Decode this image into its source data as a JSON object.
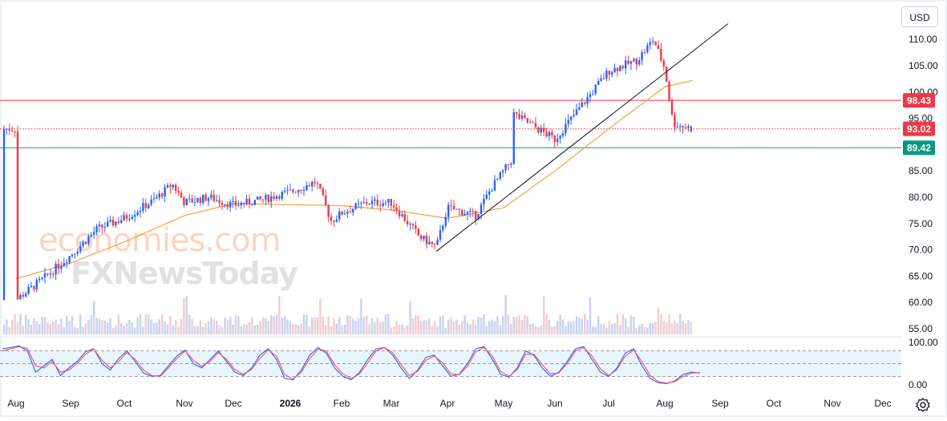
{
  "currency_label": "USD",
  "watermark": {
    "line1": "economies.com",
    "line2": "FXNewsToday"
  },
  "chart_data": [
    {
      "type": "candlestick",
      "title": "",
      "currency": "USD",
      "y_axis": {
        "min": 55,
        "max": 110,
        "ticks": [
          "110.00",
          "105.00",
          "100.00",
          "95.00",
          "90.00",
          "85.00",
          "80.00",
          "75.00",
          "70.00",
          "65.00",
          "60.00",
          "55.00"
        ]
      },
      "x_axis": {
        "labels": [
          "Aug",
          "Sep",
          "Oct",
          "Nov",
          "Dec",
          "2026",
          "Feb",
          "Mar",
          "Apr",
          "May",
          "Jun",
          "Jul",
          "Aug",
          "Sep",
          "Oct",
          "Nov",
          "Dec"
        ],
        "bold_label": "2026"
      },
      "horizontal_lines": [
        {
          "label": "98.43",
          "value": 98.43,
          "color": "#f23645",
          "style": "solid"
        },
        {
          "label": "93.02",
          "value": 93.02,
          "color": "#f23645",
          "style": "dotted",
          "note": "last price"
        },
        {
          "label": "89.42",
          "value": 89.42,
          "color": "#089981",
          "style": "solid"
        }
      ],
      "trendline": {
        "from": {
          "date": "late Mar",
          "value": 69.7
        },
        "to": {
          "date": "early Sep",
          "value": 113.0
        }
      },
      "moving_average": {
        "color": "#f7a03c",
        "points": [
          {
            "date": "Aug",
            "value": 64.5
          },
          {
            "date": "Sep",
            "value": 67.5
          },
          {
            "date": "Oct",
            "value": 71.5
          },
          {
            "date": "Nov",
            "value": 76.5
          },
          {
            "date": "Dec",
            "value": 78.8
          },
          {
            "date": "Jan",
            "value": 78.6
          },
          {
            "date": "Feb",
            "value": 78.4
          },
          {
            "date": "Mar",
            "value": 77.6
          },
          {
            "date": "Apr",
            "value": 76.0
          },
          {
            "date": "May",
            "value": 78.0
          },
          {
            "date": "Jun",
            "value": 85.0
          },
          {
            "date": "Jul",
            "value": 93.0
          },
          {
            "date": "Aug",
            "value": 101.0
          },
          {
            "date": "mid Aug",
            "value": 102.2
          }
        ]
      },
      "price_path": [
        {
          "date": "Aug",
          "value": 60.5
        },
        {
          "date": "mid Aug",
          "value": 64.5
        },
        {
          "date": "Sep",
          "value": 69.0
        },
        {
          "date": "mid Sep",
          "value": 74.0
        },
        {
          "date": "Oct",
          "value": 76.0
        },
        {
          "date": "mid Oct",
          "value": 79.5
        },
        {
          "date": "late Oct",
          "value": 82.5
        },
        {
          "date": "Nov",
          "value": 79.0
        },
        {
          "date": "mid Nov",
          "value": 80.0
        },
        {
          "date": "Dec",
          "value": 78.5
        },
        {
          "date": "mid Dec",
          "value": 79.5
        },
        {
          "date": "late Dec",
          "value": 80.5
        },
        {
          "date": "Jan",
          "value": 81.0
        },
        {
          "date": "mid Jan",
          "value": 83.0
        },
        {
          "date": "late Jan",
          "value": 75.5
        },
        {
          "date": "Feb",
          "value": 77.0
        },
        {
          "date": "mid Feb",
          "value": 79.0
        },
        {
          "date": "Mar",
          "value": 79.0
        },
        {
          "date": "mid Mar",
          "value": 72.5
        },
        {
          "date": "late Mar",
          "value": 70.5
        },
        {
          "date": "Apr",
          "value": 78.0
        },
        {
          "date": "mid Apr",
          "value": 76.5
        },
        {
          "date": "late Apr",
          "value": 82.0
        },
        {
          "date": "early May",
          "value": 87.0
        },
        {
          "date": "May",
          "value": 97.0
        },
        {
          "date": "mid May",
          "value": 94.0
        },
        {
          "date": "Jun",
          "value": 91.0
        },
        {
          "date": "mid Jun",
          "value": 97.5
        },
        {
          "date": "Jul",
          "value": 104.0
        },
        {
          "date": "mid Jul",
          "value": 106.0
        },
        {
          "date": "late Jul",
          "value": 110.0
        },
        {
          "date": "Aug",
          "value": 104.5
        },
        {
          "date": "early Aug",
          "value": 94.0
        },
        {
          "date": "mid Aug",
          "value": 93.0
        }
      ]
    },
    {
      "type": "line",
      "title": "",
      "indicator": "stochastic",
      "y_axis": {
        "min": 0,
        "max": 100,
        "ticks": [
          "100.00",
          "0.00"
        ]
      },
      "band": {
        "upper": 80,
        "middle": 50,
        "lower": 20
      },
      "series": [
        {
          "color": "#2962ff",
          "values": [
            85,
            88,
            92,
            80,
            30,
            45,
            60,
            22,
            40,
            55,
            78,
            85,
            50,
            35,
            62,
            80,
            55,
            28,
            20,
            22,
            45,
            68,
            82,
            50,
            40,
            60,
            80,
            55,
            30,
            22,
            40,
            70,
            85,
            60,
            15,
            12,
            35,
            70,
            88,
            75,
            40,
            20,
            12,
            30,
            60,
            85,
            88,
            70,
            40,
            15,
            35,
            65,
            70,
            45,
            20,
            25,
            50,
            85,
            90,
            60,
            25,
            18,
            40,
            80,
            70,
            40,
            20,
            30,
            55,
            85,
            90,
            60,
            30,
            20,
            40,
            75,
            85,
            45,
            15,
            5,
            3,
            10,
            25,
            30,
            28
          ]
        },
        {
          "color": "#f7525f",
          "values": [
            80,
            85,
            90,
            86,
            45,
            40,
            55,
            30,
            35,
            50,
            72,
            84,
            58,
            40,
            55,
            76,
            60,
            35,
            22,
            20,
            40,
            62,
            80,
            58,
            44,
            55,
            76,
            60,
            36,
            25,
            36,
            62,
            82,
            68,
            24,
            14,
            30,
            62,
            84,
            80,
            48,
            26,
            15,
            26,
            52,
            80,
            88,
            76,
            48,
            22,
            32,
            58,
            68,
            52,
            26,
            24,
            44,
            78,
            88,
            68,
            32,
            20,
            36,
            72,
            72,
            48,
            26,
            28,
            50,
            80,
            88,
            68,
            38,
            22,
            36,
            68,
            82,
            55,
            22,
            8,
            4,
            8,
            20,
            28,
            29
          ]
        }
      ]
    }
  ]
}
